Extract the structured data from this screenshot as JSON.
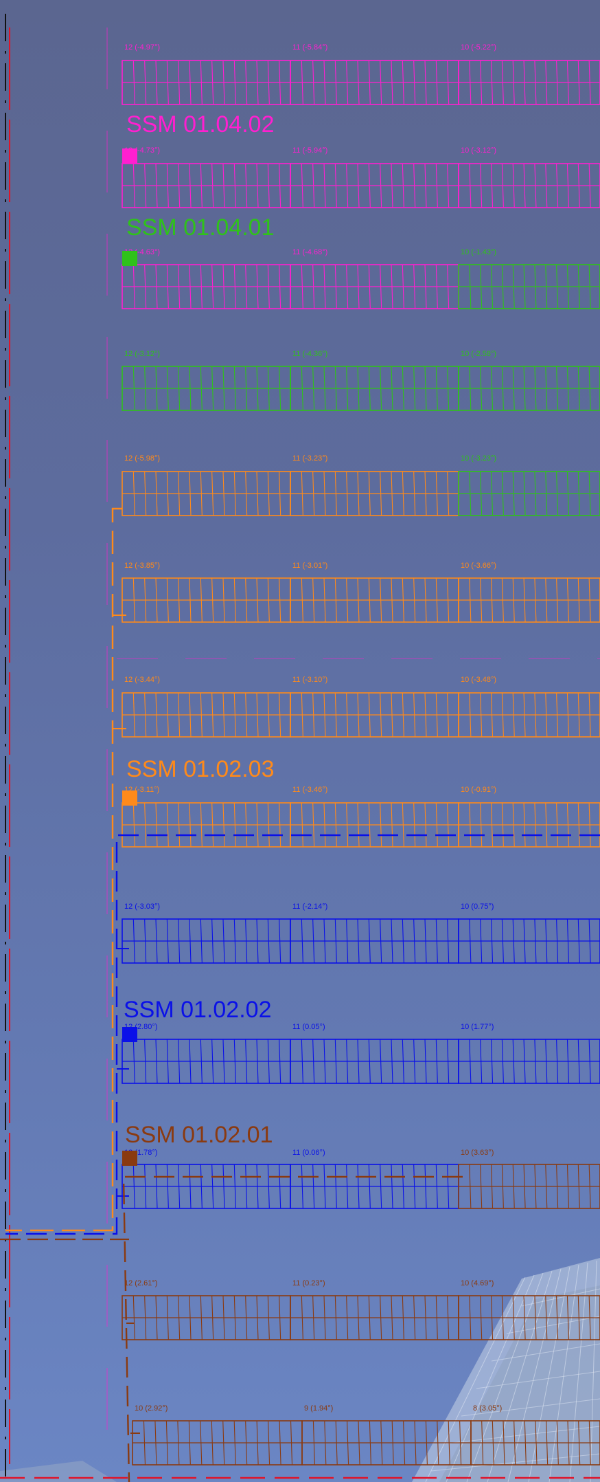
{
  "colors": {
    "magenta": "#ff1fd0",
    "green": "#2fc21a",
    "orange": "#ff8a1a",
    "blue": "#0a10e8",
    "brown": "#8a3a10",
    "red": "#e0142a",
    "black": "#111111"
  },
  "ssm_labels": [
    {
      "text": "SSM 01.04.02",
      "color": "magenta"
    },
    {
      "text": "SSM 01.04.01",
      "color": "green"
    },
    {
      "text": "SSM 01.02.03",
      "color": "orange"
    },
    {
      "text": "SSM 01.02.02",
      "color": "blue"
    },
    {
      "text": "SSM 01.02.01",
      "color": "brown"
    }
  ],
  "rows": [
    {
      "labels": [
        "12 (-4.97°)",
        "11 (-5.84°)",
        "10 (-5.22°)"
      ],
      "colors": [
        "magenta",
        "magenta",
        "magenta"
      ]
    },
    {
      "labels": [
        "12 (-4.73°)",
        "11 (-5.94°)",
        "10 (-3.12°)"
      ],
      "colors": [
        "magenta",
        "magenta",
        "magenta"
      ]
    },
    {
      "labels": [
        "12 (-4.63°)",
        "11 (-4.68°)",
        "10 (-1.43°)"
      ],
      "colors": [
        "magenta",
        "magenta",
        "green"
      ]
    },
    {
      "labels": [
        "12 (-3.12°)",
        "11 (-4.36°)",
        "10 (-2.58°)"
      ],
      "colors": [
        "green",
        "green",
        "green"
      ]
    },
    {
      "labels": [
        "12 (-5.98°)",
        "11 (-3.23°)",
        "10 (-3.23°)"
      ],
      "colors": [
        "orange",
        "orange",
        "green"
      ]
    },
    {
      "labels": [
        "12 (-3.85°)",
        "11 (-3.01°)",
        "10 (-3.66°)"
      ],
      "colors": [
        "orange",
        "orange",
        "orange"
      ]
    },
    {
      "labels": [
        "12 (-3.44°)",
        "11 (-3.10°)",
        "10 (-3.48°)"
      ],
      "colors": [
        "orange",
        "orange",
        "orange"
      ]
    },
    {
      "labels": [
        "12 (-3.11°)",
        "11 (-3.46°)",
        "10 (-0.91°)"
      ],
      "colors": [
        "orange",
        "orange",
        "orange"
      ]
    },
    {
      "labels": [
        "12 (-3.03°)",
        "11 (-2.14°)",
        "10 (0.75°)"
      ],
      "colors": [
        "blue",
        "blue",
        "blue"
      ]
    },
    {
      "labels": [
        "12 (2.80°)",
        "11 (0.05°)",
        "10 (1.77°)"
      ],
      "colors": [
        "blue",
        "blue",
        "blue"
      ]
    },
    {
      "labels": [
        "12 (1.78°)",
        "11 (0.06°)",
        "10 (3.63°)"
      ],
      "colors": [
        "blue",
        "blue",
        "brown"
      ]
    },
    {
      "labels": [
        "12 (2.61°)",
        "11 (0.23°)",
        "10 (4.69°)"
      ],
      "colors": [
        "brown",
        "brown",
        "brown"
      ]
    },
    {
      "labels": [
        "10 (2.92°)",
        "9 (1.94°)",
        "8 (3.05°)"
      ],
      "colors": [
        "brown",
        "brown",
        "brown"
      ]
    }
  ]
}
